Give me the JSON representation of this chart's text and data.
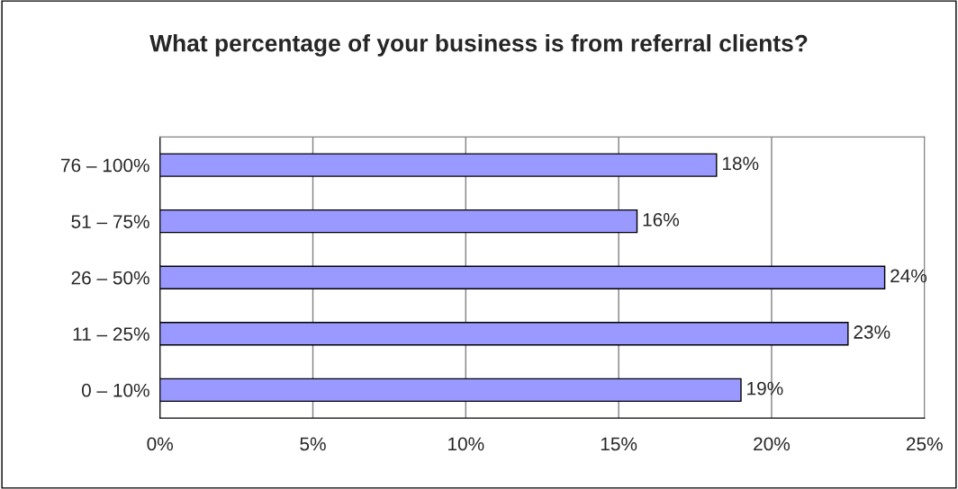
{
  "chart_data": {
    "type": "bar",
    "orientation": "horizontal",
    "title": "What percentage of your business is from referral clients?",
    "categories": [
      "76 – 100%",
      "51 – 75%",
      "26 – 50%",
      "11 – 25%",
      "0 – 10%"
    ],
    "values": [
      18.2,
      15.6,
      23.7,
      22.5,
      19.0
    ],
    "value_labels": [
      "18%",
      "16%",
      "24%",
      "23%",
      "19%"
    ],
    "color": "#9999ff",
    "xlim": [
      0,
      25
    ],
    "xticks": [
      {
        "value": 0,
        "label": "0%"
      },
      {
        "value": 5,
        "label": "5%"
      },
      {
        "value": 10,
        "label": "10%"
      },
      {
        "value": 15,
        "label": "15%"
      },
      {
        "value": 20,
        "label": "20%"
      },
      {
        "value": 25,
        "label": "25%"
      }
    ],
    "grid": "x",
    "legend": false
  }
}
